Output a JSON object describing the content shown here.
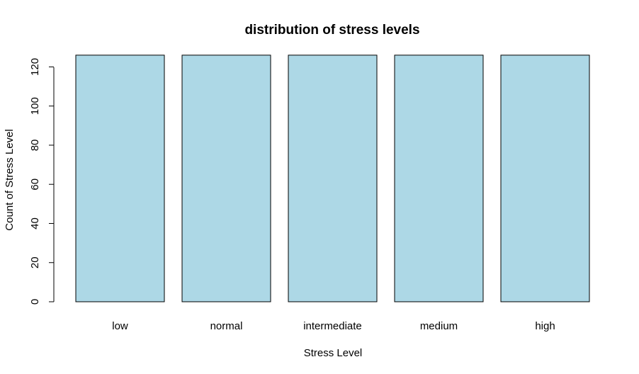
{
  "chart_data": {
    "type": "bar",
    "title": "distribution of stress levels",
    "xlabel": "Stress Level",
    "ylabel": "Count of Stress Level",
    "categories": [
      "low",
      "normal",
      "intermediate",
      "medium",
      "high"
    ],
    "values": [
      126,
      126,
      126,
      126,
      126
    ],
    "yticks": [
      0,
      20,
      40,
      60,
      80,
      100,
      120
    ],
    "ylim": [
      0,
      126
    ],
    "bar_color": "#add8e6",
    "grid": false,
    "legend": "none"
  }
}
